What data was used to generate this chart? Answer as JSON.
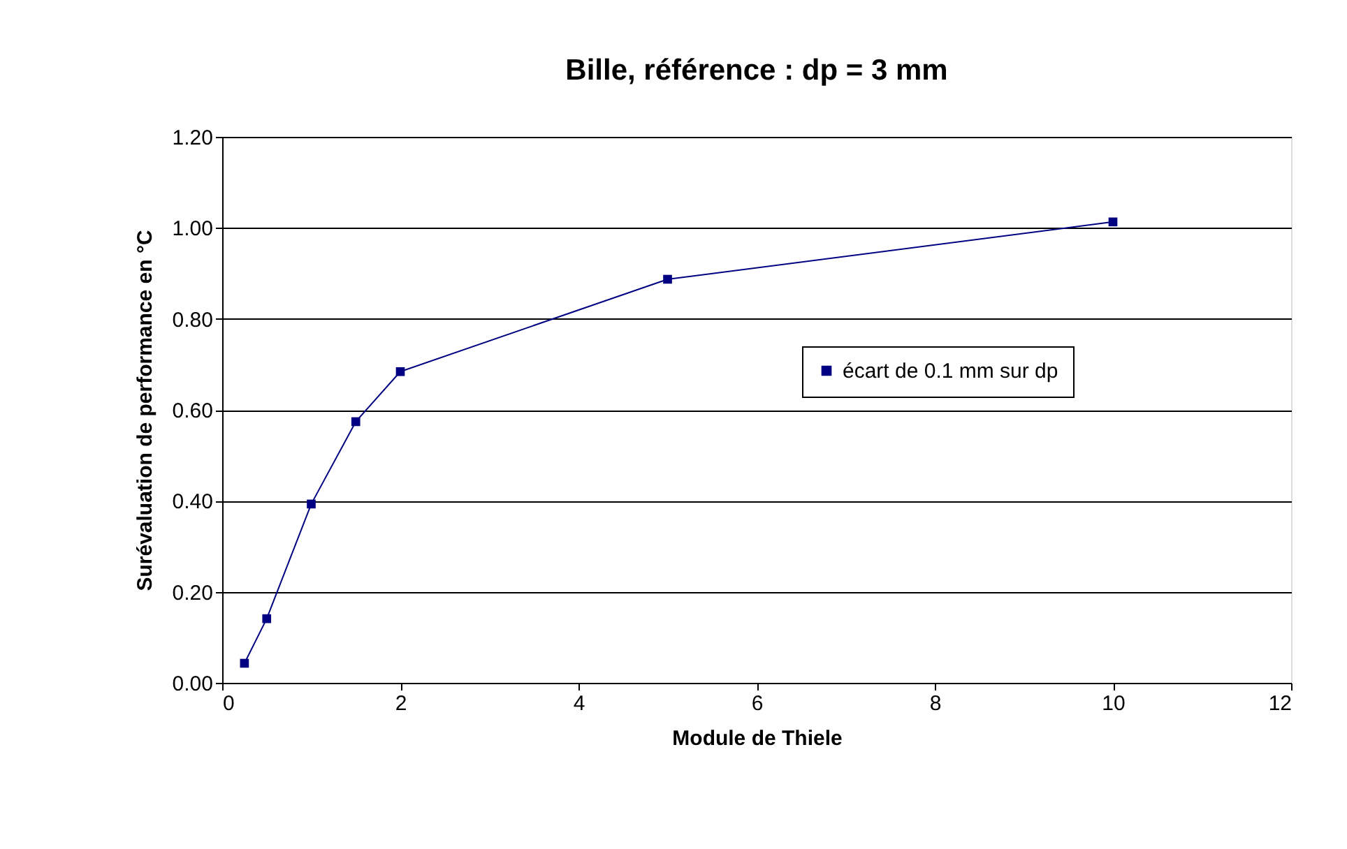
{
  "chart_data": {
    "type": "line",
    "title": "Bille, référence : dp = 3 mm",
    "xlabel": "Module de Thiele",
    "ylabel": "Surévaluation de performance en °C",
    "x": [
      0.25,
      0.5,
      1,
      1.5,
      2,
      5,
      10
    ],
    "series": [
      {
        "name": "écart de 0.1 mm sur dp",
        "color": "#000080",
        "values": [
          0.043,
          0.141,
          0.393,
          0.574,
          0.684,
          0.887,
          1.013
        ]
      }
    ],
    "xlim": [
      0,
      12
    ],
    "xticks": [
      0,
      2,
      4,
      6,
      8,
      10,
      12
    ],
    "ylim": [
      0,
      1.2
    ],
    "yticks": [
      {
        "value": 0,
        "label": "0.00"
      },
      {
        "value": 0.2,
        "label": "0.20"
      },
      {
        "value": 0.4,
        "label": "0.40"
      },
      {
        "value": 0.6,
        "label": "0.60"
      },
      {
        "value": 0.8,
        "label": "0.80"
      },
      {
        "value": 1.0,
        "label": "1.00"
      },
      {
        "value": 1.2,
        "label": "1.20"
      }
    ],
    "grid": "y",
    "legend": "right",
    "marker": "square",
    "line_style": "solid"
  }
}
